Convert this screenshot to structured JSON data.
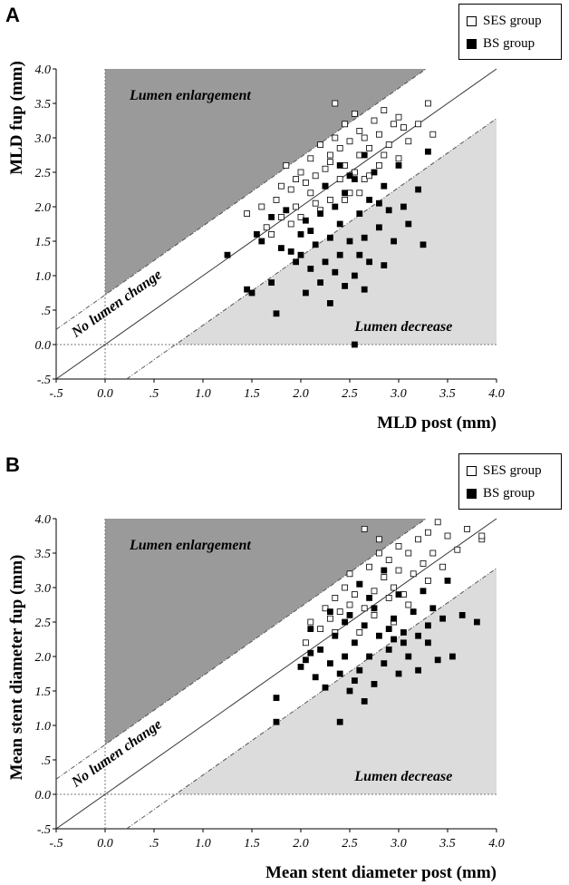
{
  "chart_data": [
    {
      "type": "scatter",
      "panel_label": "A",
      "xlabel": "MLD post (mm)",
      "ylabel": "MLD fup (mm)",
      "xlim": [
        -0.5,
        4.0
      ],
      "ylim": [
        -0.5,
        4.0
      ],
      "xticks": [
        "-.5",
        "0.0",
        ".5",
        "1.0",
        "1.5",
        "2.0",
        "2.5",
        "3.0",
        "3.5",
        "4.0"
      ],
      "yticks": [
        "-.5",
        "0.0",
        ".5",
        "1.0",
        "1.5",
        "2.0",
        "2.5",
        "3.0",
        "3.5",
        "4.0"
      ],
      "annotations": {
        "enlargement": "Lumen enlargement",
        "decrease": "Lumen decrease",
        "no_change": "No lumen change"
      },
      "legend_placement": "top-right",
      "series": [
        {
          "name": "SES group",
          "marker": "open-square",
          "points": [
            [
              1.45,
              1.9
            ],
            [
              1.6,
              2.0
            ],
            [
              1.65,
              1.7
            ],
            [
              1.7,
              1.6
            ],
            [
              1.75,
              2.1
            ],
            [
              1.8,
              1.85
            ],
            [
              1.8,
              2.3
            ],
            [
              1.85,
              2.6
            ],
            [
              1.9,
              1.75
            ],
            [
              1.9,
              2.25
            ],
            [
              1.95,
              2.0
            ],
            [
              2.0,
              2.5
            ],
            [
              2.0,
              1.85
            ],
            [
              2.05,
              2.35
            ],
            [
              2.1,
              2.2
            ],
            [
              2.1,
              2.7
            ],
            [
              2.15,
              2.45
            ],
            [
              2.2,
              1.95
            ],
            [
              2.2,
              2.9
            ],
            [
              2.25,
              2.3
            ],
            [
              2.25,
              2.55
            ],
            [
              2.3,
              2.75
            ],
            [
              2.3,
              2.1
            ],
            [
              2.35,
              3.0
            ],
            [
              2.35,
              3.5
            ],
            [
              2.4,
              2.4
            ],
            [
              2.4,
              2.85
            ],
            [
              2.45,
              2.6
            ],
            [
              2.45,
              3.2
            ],
            [
              2.5,
              2.2
            ],
            [
              2.5,
              2.95
            ],
            [
              2.55,
              2.5
            ],
            [
              2.55,
              3.35
            ],
            [
              2.6,
              2.75
            ],
            [
              2.6,
              3.1
            ],
            [
              2.65,
              2.4
            ],
            [
              2.65,
              3.0
            ],
            [
              2.7,
              2.85
            ],
            [
              2.75,
              3.25
            ],
            [
              2.8,
              2.6
            ],
            [
              2.8,
              3.05
            ],
            [
              2.85,
              3.4
            ],
            [
              2.9,
              2.9
            ],
            [
              2.95,
              3.2
            ],
            [
              3.0,
              2.7
            ],
            [
              3.0,
              3.3
            ],
            [
              3.05,
              3.15
            ],
            [
              3.1,
              2.95
            ],
            [
              3.2,
              3.2
            ],
            [
              3.3,
              3.5
            ],
            [
              3.35,
              3.05
            ],
            [
              2.15,
              2.05
            ],
            [
              2.3,
              2.65
            ],
            [
              2.45,
              2.1
            ],
            [
              2.7,
              2.45
            ],
            [
              1.95,
              2.4
            ],
            [
              2.6,
              2.2
            ],
            [
              2.85,
              2.75
            ]
          ]
        },
        {
          "name": "BS group",
          "marker": "filled-square",
          "points": [
            [
              1.25,
              1.3
            ],
            [
              1.45,
              0.8
            ],
            [
              1.5,
              0.75
            ],
            [
              1.55,
              1.6
            ],
            [
              1.6,
              1.5
            ],
            [
              1.7,
              0.9
            ],
            [
              1.75,
              0.45
            ],
            [
              1.8,
              1.4
            ],
            [
              1.85,
              1.95
            ],
            [
              1.9,
              1.35
            ],
            [
              1.95,
              1.2
            ],
            [
              2.0,
              1.6
            ],
            [
              2.05,
              0.75
            ],
            [
              2.05,
              1.8
            ],
            [
              2.1,
              1.1
            ],
            [
              2.15,
              1.45
            ],
            [
              2.2,
              0.9
            ],
            [
              2.2,
              1.9
            ],
            [
              2.25,
              1.2
            ],
            [
              2.3,
              0.6
            ],
            [
              2.3,
              1.55
            ],
            [
              2.35,
              2.0
            ],
            [
              2.35,
              1.05
            ],
            [
              2.4,
              1.3
            ],
            [
              2.4,
              1.75
            ],
            [
              2.45,
              0.85
            ],
            [
              2.45,
              2.2
            ],
            [
              2.5,
              1.5
            ],
            [
              2.5,
              2.45
            ],
            [
              2.55,
              1.0
            ],
            [
              2.55,
              0.0
            ],
            [
              2.6,
              1.3
            ],
            [
              2.6,
              1.9
            ],
            [
              2.65,
              0.8
            ],
            [
              2.65,
              1.55
            ],
            [
              2.7,
              2.1
            ],
            [
              2.7,
              1.2
            ],
            [
              2.75,
              2.5
            ],
            [
              2.8,
              1.7
            ],
            [
              2.85,
              1.15
            ],
            [
              2.85,
              2.3
            ],
            [
              2.9,
              1.95
            ],
            [
              2.95,
              1.5
            ],
            [
              3.0,
              2.6
            ],
            [
              3.05,
              2.0
            ],
            [
              3.1,
              1.75
            ],
            [
              3.2,
              2.25
            ],
            [
              3.25,
              1.45
            ],
            [
              3.3,
              2.8
            ],
            [
              2.4,
              2.6
            ],
            [
              2.55,
              2.4
            ],
            [
              2.1,
              1.65
            ],
            [
              2.25,
              2.3
            ],
            [
              2.0,
              1.3
            ],
            [
              2.65,
              2.75
            ],
            [
              1.7,
              1.85
            ],
            [
              2.8,
              2.05
            ]
          ]
        }
      ]
    },
    {
      "type": "scatter",
      "panel_label": "B",
      "xlabel": "Mean stent diameter post (mm)",
      "ylabel": "Mean stent diameter fup (mm)",
      "xlim": [
        -0.5,
        4.0
      ],
      "ylim": [
        -0.5,
        4.0
      ],
      "xticks": [
        "-.5",
        "0.0",
        ".5",
        "1.0",
        "1.5",
        "2.0",
        "2.5",
        "3.0",
        "3.5",
        "4.0"
      ],
      "yticks": [
        "-.5",
        "0.0",
        ".5",
        "1.0",
        "1.5",
        "2.0",
        "2.5",
        "3.0",
        "3.5",
        "4.0"
      ],
      "annotations": {
        "enlargement": "Lumen enlargement",
        "decrease": "Lumen decrease",
        "no_change": "No lumen change"
      },
      "legend_placement": "top-right",
      "series": [
        {
          "name": "SES group",
          "marker": "open-square",
          "points": [
            [
              2.05,
              2.2
            ],
            [
              2.1,
              2.5
            ],
            [
              2.2,
              2.4
            ],
            [
              2.25,
              2.7
            ],
            [
              2.3,
              2.55
            ],
            [
              2.35,
              2.85
            ],
            [
              2.4,
              2.65
            ],
            [
              2.45,
              3.0
            ],
            [
              2.5,
              2.75
            ],
            [
              2.5,
              3.2
            ],
            [
              2.55,
              2.9
            ],
            [
              2.6,
              3.05
            ],
            [
              2.65,
              3.85
            ],
            [
              2.65,
              2.7
            ],
            [
              2.7,
              3.3
            ],
            [
              2.75,
              2.95
            ],
            [
              2.8,
              3.5
            ],
            [
              2.85,
              3.15
            ],
            [
              2.9,
              2.85
            ],
            [
              2.9,
              3.4
            ],
            [
              2.95,
              3.0
            ],
            [
              3.0,
              3.25
            ],
            [
              3.0,
              3.6
            ],
            [
              3.05,
              2.9
            ],
            [
              3.1,
              3.5
            ],
            [
              3.15,
              3.2
            ],
            [
              3.2,
              3.7
            ],
            [
              3.25,
              3.35
            ],
            [
              3.3,
              3.1
            ],
            [
              3.3,
              3.8
            ],
            [
              3.35,
              3.5
            ],
            [
              3.4,
              3.95
            ],
            [
              3.45,
              3.3
            ],
            [
              3.5,
              3.75
            ],
            [
              3.6,
              3.55
            ],
            [
              3.7,
              3.85
            ],
            [
              3.85,
              3.7
            ],
            [
              3.85,
              3.75
            ],
            [
              2.6,
              2.35
            ],
            [
              2.75,
              2.6
            ],
            [
              2.95,
              2.5
            ],
            [
              3.1,
              2.75
            ],
            [
              2.35,
              2.35
            ],
            [
              2.8,
              3.7
            ]
          ]
        },
        {
          "name": "BS group",
          "marker": "filled-square",
          "points": [
            [
              1.75,
              1.05
            ],
            [
              1.75,
              1.4
            ],
            [
              2.05,
              1.95
            ],
            [
              2.1,
              2.4
            ],
            [
              2.15,
              1.7
            ],
            [
              2.2,
              2.1
            ],
            [
              2.25,
              1.55
            ],
            [
              2.3,
              1.9
            ],
            [
              2.35,
              2.3
            ],
            [
              2.4,
              1.05
            ],
            [
              2.4,
              1.75
            ],
            [
              2.45,
              2.0
            ],
            [
              2.5,
              1.5
            ],
            [
              2.5,
              2.6
            ],
            [
              2.55,
              2.2
            ],
            [
              2.6,
              1.8
            ],
            [
              2.65,
              1.35
            ],
            [
              2.65,
              2.45
            ],
            [
              2.7,
              2.0
            ],
            [
              2.75,
              1.6
            ],
            [
              2.75,
              2.7
            ],
            [
              2.8,
              2.3
            ],
            [
              2.85,
              1.9
            ],
            [
              2.85,
              3.25
            ],
            [
              2.9,
              2.1
            ],
            [
              2.95,
              2.55
            ],
            [
              3.0,
              1.75
            ],
            [
              3.0,
              2.9
            ],
            [
              3.05,
              2.35
            ],
            [
              3.1,
              2.0
            ],
            [
              3.15,
              2.65
            ],
            [
              3.2,
              1.8
            ],
            [
              3.25,
              2.95
            ],
            [
              3.3,
              2.2
            ],
            [
              3.35,
              2.7
            ],
            [
              3.4,
              1.95
            ],
            [
              3.45,
              2.55
            ],
            [
              3.5,
              3.1
            ],
            [
              3.55,
              2.0
            ],
            [
              3.65,
              2.6
            ],
            [
              3.8,
              2.5
            ],
            [
              2.3,
              2.65
            ],
            [
              2.55,
              1.65
            ],
            [
              2.7,
              2.85
            ],
            [
              2.9,
              2.4
            ],
            [
              2.1,
              2.05
            ],
            [
              3.05,
              2.2
            ],
            [
              3.3,
              2.45
            ],
            [
              2.45,
              2.5
            ],
            [
              2.6,
              3.05
            ],
            [
              2.95,
              2.25
            ],
            [
              3.2,
              2.3
            ],
            [
              2.0,
              1.85
            ]
          ]
        }
      ]
    }
  ]
}
